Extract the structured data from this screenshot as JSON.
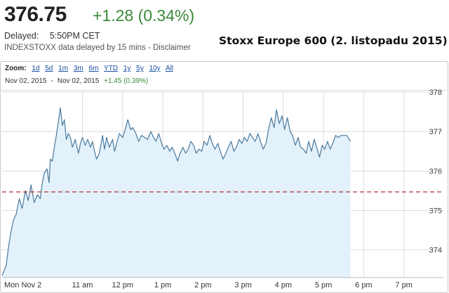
{
  "quote": {
    "price": "376.75",
    "change": "+1.28 (0.34%)",
    "delayed_label": "Delayed:",
    "delayed_time": "5:50PM CET",
    "source_note": "INDEXSTOXX data delayed by 15 mins - Disclaimer"
  },
  "headline": "Stoxx Europe 600 (2. listopadu 2015)",
  "toolbar": {
    "zoom_label": "Zoom:",
    "buttons": [
      "1d",
      "5d",
      "1m",
      "3m",
      "6m",
      "YTD",
      "1y",
      "5y",
      "10y",
      "All"
    ]
  },
  "range": {
    "start": "Nov 02, 2015",
    "sep": "-",
    "end": "Nov 02, 2015",
    "change": "+1.45 (0.39%)"
  },
  "colors": {
    "line": "#4a7a9c",
    "fill": "#e3f1fb",
    "prev_close": "#b03030",
    "grid": "#dcdcdc",
    "up": "#3a8a3a"
  },
  "chart_data": {
    "type": "area",
    "xlabel": "",
    "ylabel": "",
    "x_ticks": [
      "Mon Nov 2",
      "11 am",
      "12 pm",
      "1 pm",
      "2 pm",
      "3 pm",
      "4 pm",
      "5 pm",
      "6 pm",
      "7 pm"
    ],
    "x_tick_hours": [
      9.15,
      11,
      12,
      13,
      14,
      15,
      16,
      17,
      18,
      19
    ],
    "y_ticks": [
      "374",
      "375",
      "376",
      "377",
      "378"
    ],
    "ylim": [
      373.3,
      378.0
    ],
    "xlim": [
      9.0,
      19.6
    ],
    "previous_close": 375.47,
    "grid": true,
    "series": [
      {
        "x": [
          9.0,
          9.1,
          9.15,
          9.2,
          9.28,
          9.35,
          9.43,
          9.5,
          9.58,
          9.65,
          9.72,
          9.8,
          9.88,
          9.95,
          10.0,
          10.05,
          10.12,
          10.17,
          10.2,
          10.25,
          10.3,
          10.35,
          10.4,
          10.45,
          10.5,
          10.55,
          10.6,
          10.65,
          10.7,
          10.75,
          10.82,
          10.9,
          10.95,
          11.0,
          11.07,
          11.13,
          11.2,
          11.25,
          11.3,
          11.35,
          11.42,
          11.5,
          11.55,
          11.6,
          11.67,
          11.75,
          11.8,
          11.85,
          11.92,
          12.0,
          12.05,
          12.13,
          12.2,
          12.25,
          12.33,
          12.4,
          12.47,
          12.55,
          12.62,
          12.7,
          12.77,
          12.83,
          12.9,
          12.97,
          13.03,
          13.1,
          13.17,
          13.23,
          13.3,
          13.37,
          13.43,
          13.5,
          13.57,
          13.63,
          13.7,
          13.77,
          13.83,
          13.9,
          13.97,
          14.03,
          14.1,
          14.17,
          14.23,
          14.3,
          14.37,
          14.43,
          14.5,
          14.57,
          14.63,
          14.7,
          14.77,
          14.83,
          14.9,
          14.97,
          15.03,
          15.1,
          15.17,
          15.23,
          15.3,
          15.37,
          15.43,
          15.5,
          15.57,
          15.63,
          15.7,
          15.77,
          15.83,
          15.9,
          15.97,
          16.03,
          16.1,
          16.17,
          16.23,
          16.3,
          16.37,
          16.43,
          16.5,
          16.57,
          16.63,
          16.7,
          16.77,
          16.83,
          16.9,
          16.97,
          17.03,
          17.1,
          17.17,
          17.23,
          17.3,
          17.37,
          17.43,
          17.5,
          17.58,
          17.67
        ],
        "y": [
          373.35,
          373.6,
          374.0,
          374.35,
          374.75,
          374.9,
          375.3,
          375.05,
          375.5,
          375.25,
          375.65,
          375.2,
          375.4,
          375.3,
          375.7,
          375.95,
          376.05,
          375.7,
          376.3,
          376.25,
          376.6,
          376.9,
          377.25,
          377.6,
          377.15,
          377.3,
          376.8,
          376.95,
          376.85,
          376.6,
          376.8,
          376.45,
          376.7,
          376.85,
          376.65,
          376.8,
          376.6,
          376.75,
          376.5,
          376.3,
          376.45,
          376.9,
          376.55,
          376.85,
          376.6,
          376.8,
          376.5,
          376.7,
          376.95,
          376.85,
          377.0,
          377.3,
          377.05,
          377.1,
          376.95,
          376.75,
          376.9,
          376.85,
          376.8,
          377.0,
          376.85,
          376.75,
          376.95,
          376.7,
          376.55,
          376.65,
          376.5,
          376.6,
          376.45,
          376.25,
          376.45,
          376.6,
          376.45,
          376.55,
          376.75,
          376.65,
          376.45,
          376.55,
          376.5,
          376.75,
          376.65,
          376.9,
          376.7,
          376.55,
          376.7,
          376.5,
          376.3,
          376.45,
          376.6,
          376.75,
          376.5,
          376.6,
          376.8,
          376.7,
          376.85,
          376.75,
          376.95,
          376.85,
          376.75,
          376.95,
          376.75,
          376.55,
          376.7,
          377.05,
          377.35,
          377.1,
          377.55,
          377.2,
          377.4,
          377.05,
          377.35,
          377.0,
          376.9,
          376.65,
          376.85,
          376.6,
          376.55,
          376.45,
          376.75,
          376.5,
          376.8,
          376.6,
          376.35,
          376.65,
          376.55,
          376.75,
          376.55,
          376.7,
          376.9,
          376.85,
          376.9,
          376.9,
          376.9,
          376.75
        ]
      }
    ]
  }
}
